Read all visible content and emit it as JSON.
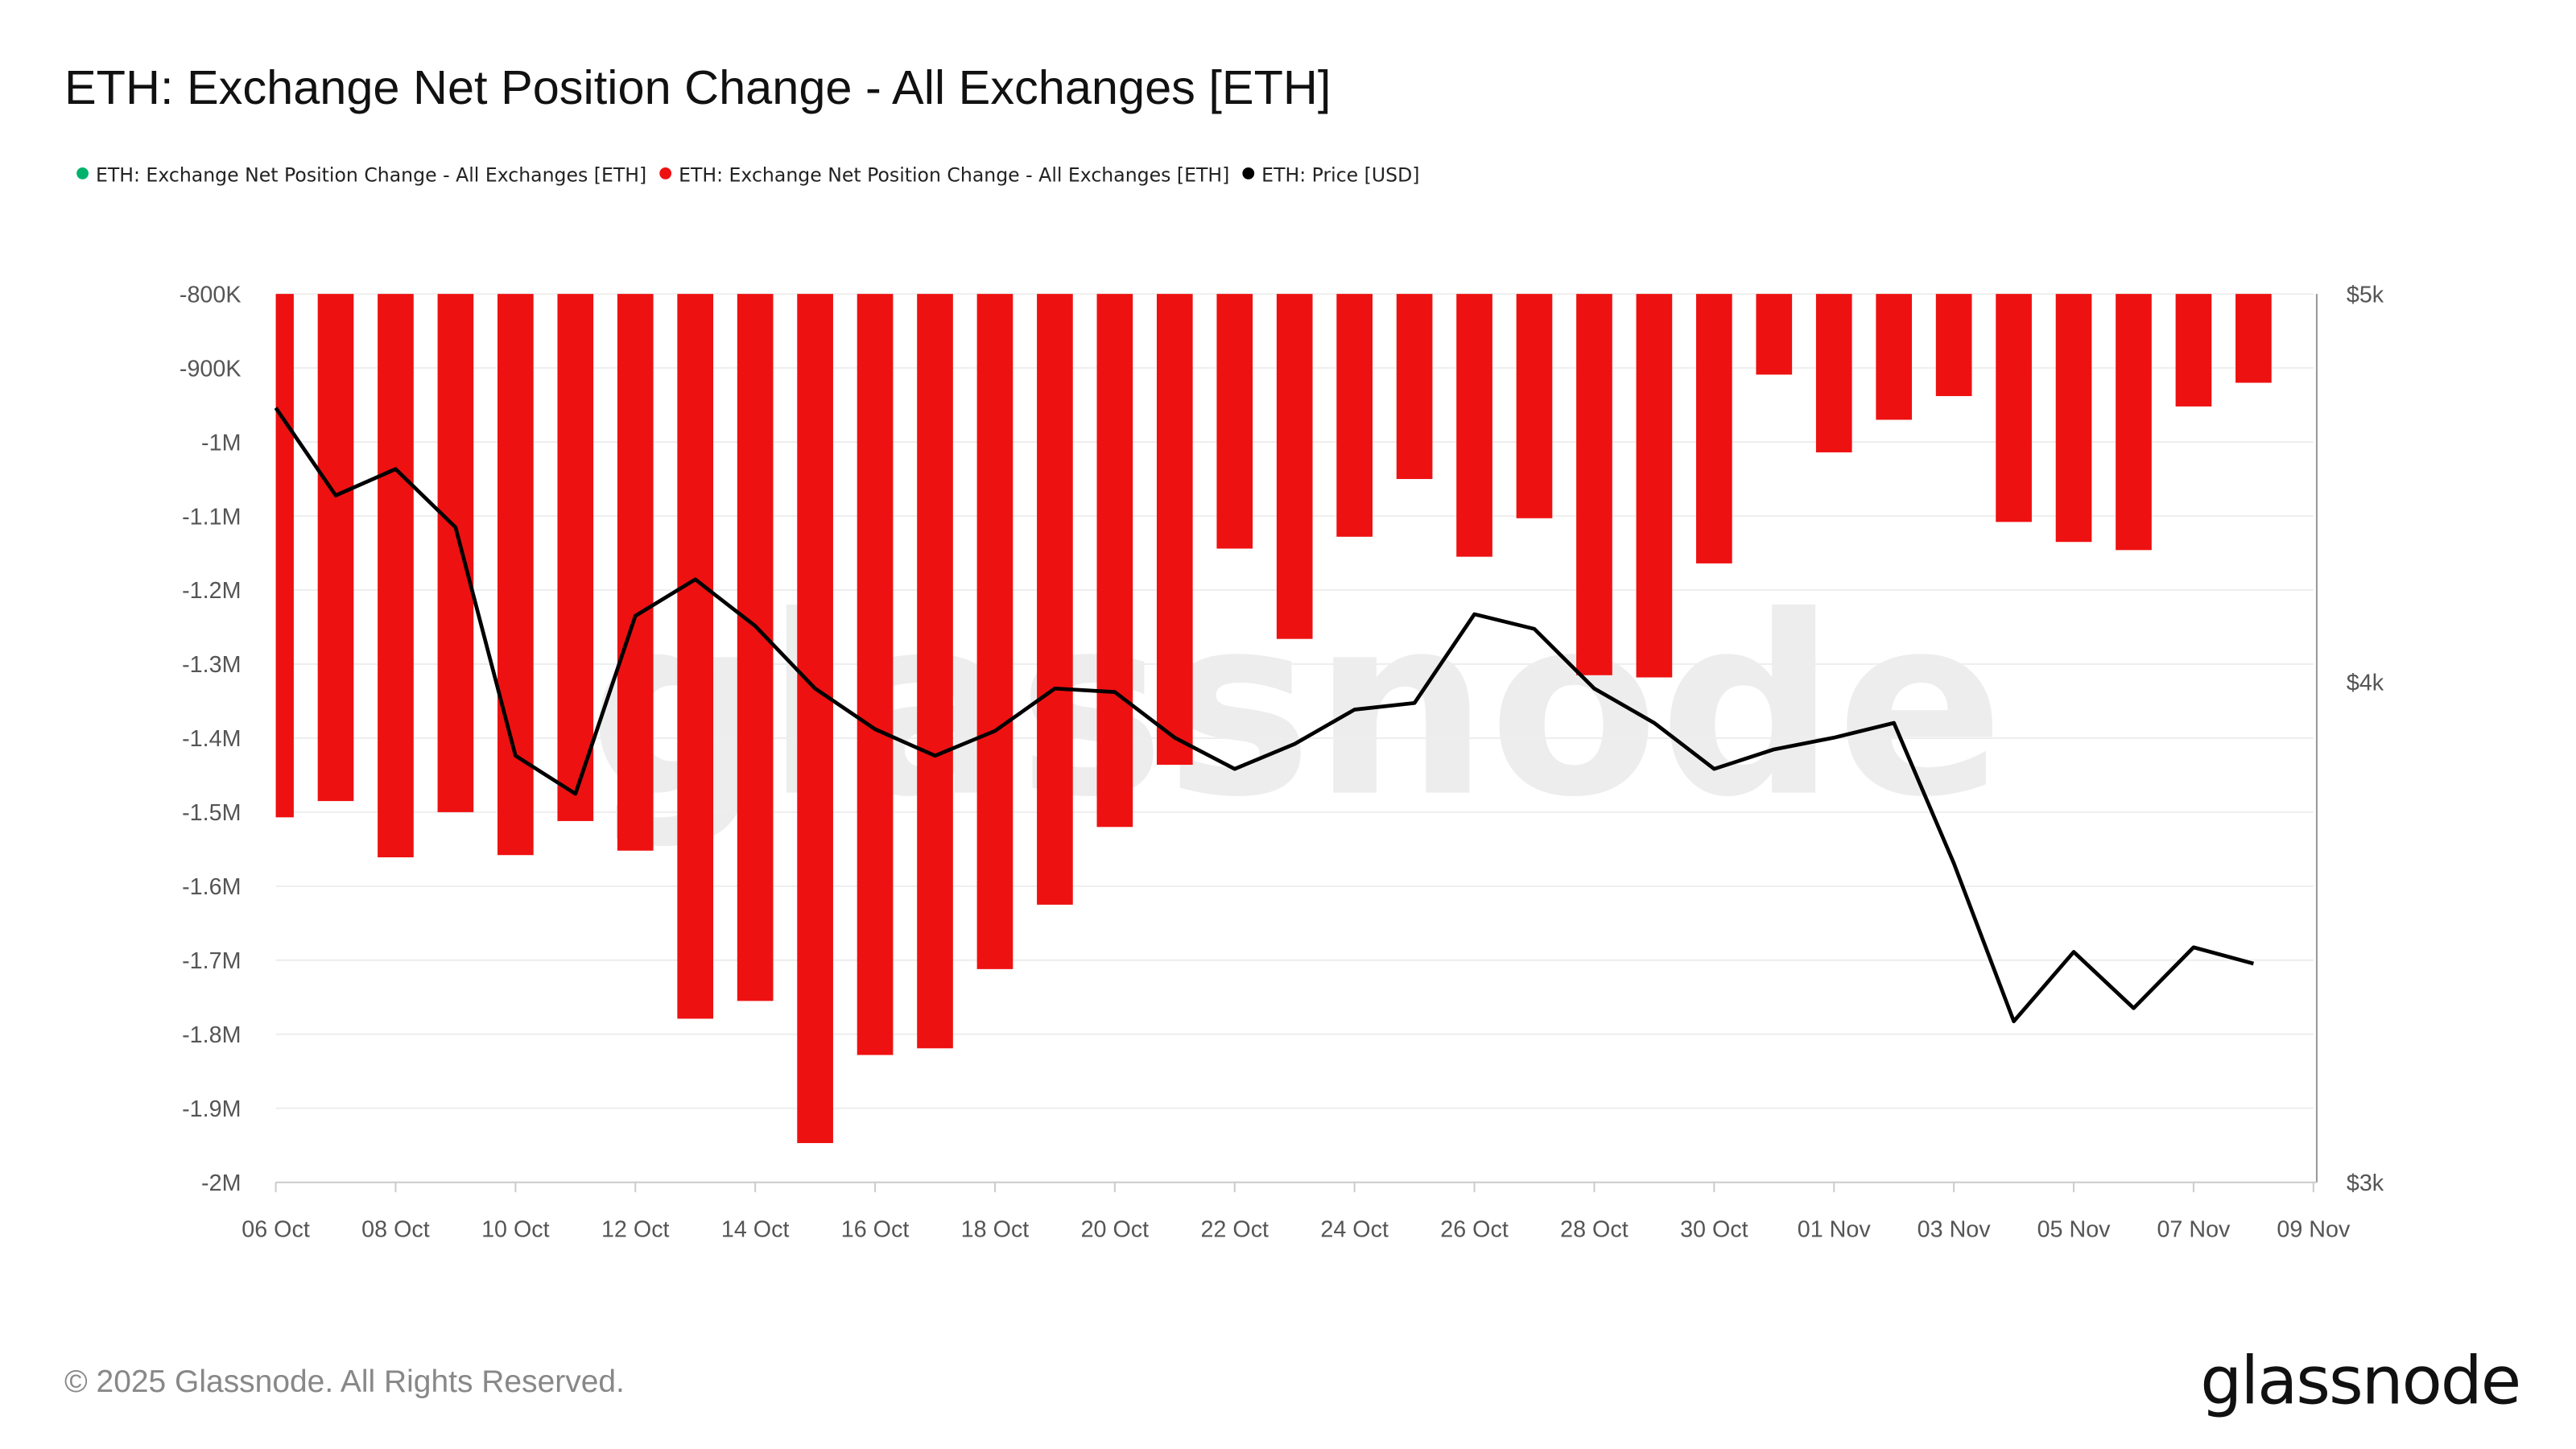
{
  "title": "ETH: Exchange Net Position Change - All Exchanges [ETH]",
  "legend": [
    {
      "label": "ETH: Exchange Net Position Change - All Exchanges [ETH]",
      "color": "#00b26b"
    },
    {
      "label": "ETH: Exchange Net Position Change - All Exchanges [ETH]",
      "color": "#ee1111"
    },
    {
      "label": "ETH: Price [USD]",
      "color": "#000000"
    }
  ],
  "footer": {
    "copyright": "© 2025 Glassnode. All Rights Reserved.",
    "logo": "glassnode",
    "watermark": "glassnode"
  },
  "chart_data": {
    "type": "bar+line",
    "title": "ETH: Exchange Net Position Change - All Exchanges [ETH]",
    "categories": [
      "06 Oct",
      "07 Oct",
      "08 Oct",
      "09 Oct",
      "10 Oct",
      "11 Oct",
      "12 Oct",
      "13 Oct",
      "14 Oct",
      "15 Oct",
      "16 Oct",
      "17 Oct",
      "18 Oct",
      "19 Oct",
      "20 Oct",
      "21 Oct",
      "22 Oct",
      "23 Oct",
      "24 Oct",
      "25 Oct",
      "26 Oct",
      "27 Oct",
      "28 Oct",
      "29 Oct",
      "30 Oct",
      "31 Oct",
      "01 Nov",
      "02 Nov",
      "03 Nov",
      "04 Nov",
      "05 Nov",
      "06 Nov",
      "07 Nov",
      "08 Nov"
    ],
    "x_tick_labels": [
      "06 Oct",
      "08 Oct",
      "10 Oct",
      "12 Oct",
      "14 Oct",
      "16 Oct",
      "18 Oct",
      "20 Oct",
      "22 Oct",
      "24 Oct",
      "26 Oct",
      "28 Oct",
      "30 Oct",
      "01 Nov",
      "03 Nov",
      "05 Nov",
      "07 Nov",
      "09 Nov"
    ],
    "series": [
      {
        "name": "ETH: Exchange Net Position Change - All Exchanges [ETH]",
        "type": "bar",
        "color": "#ee1111",
        "axis": "left",
        "values": [
          -1507000,
          -1485000,
          -1561000,
          -1500000,
          -1558000,
          -1512000,
          -1552000,
          -1779000,
          -1755000,
          -1947000,
          -1828000,
          -1819000,
          -1712000,
          -1625000,
          -1520000,
          -1436000,
          -1144000,
          -1266000,
          -1128000,
          -1050000,
          -1155000,
          -1103000,
          -1315000,
          -1318000,
          -1164000,
          -909000,
          -1014000,
          -970000,
          -938000,
          -1108000,
          -1135000,
          -1146000,
          -952000,
          -920000
        ]
      },
      {
        "name": "ETH: Price [USD]",
        "type": "line",
        "color": "#000000",
        "axis": "right",
        "values": [
          4683,
          4453,
          4521,
          4372,
          3834,
          3751,
          4155,
          4243,
          4131,
          3985,
          3893,
          3834,
          3889,
          3985,
          3977,
          3874,
          3805,
          3860,
          3937,
          3952,
          4159,
          4124,
          3985,
          3907,
          3805,
          3848,
          3874,
          3907,
          3604,
          3291,
          3425,
          3316,
          3434,
          3402
        ]
      }
    ],
    "y_left": {
      "ylim": [
        -2000000,
        -800000
      ],
      "tick_labels": [
        "-800K",
        "-900K",
        "-1M",
        "-1.1M",
        "-1.2M",
        "-1.3M",
        "-1.4M",
        "-1.5M",
        "-1.6M",
        "-1.7M",
        "-1.8M",
        "-1.9M",
        "-2M"
      ],
      "inverted": true
    },
    "y_right": {
      "ylim": [
        3000,
        5000
      ],
      "scale": "log",
      "tick_values": [
        5000,
        4000,
        3000
      ],
      "tick_labels": [
        "$5k",
        "$4k",
        "$3k"
      ]
    },
    "grid": true,
    "legend_position": "top-left"
  }
}
